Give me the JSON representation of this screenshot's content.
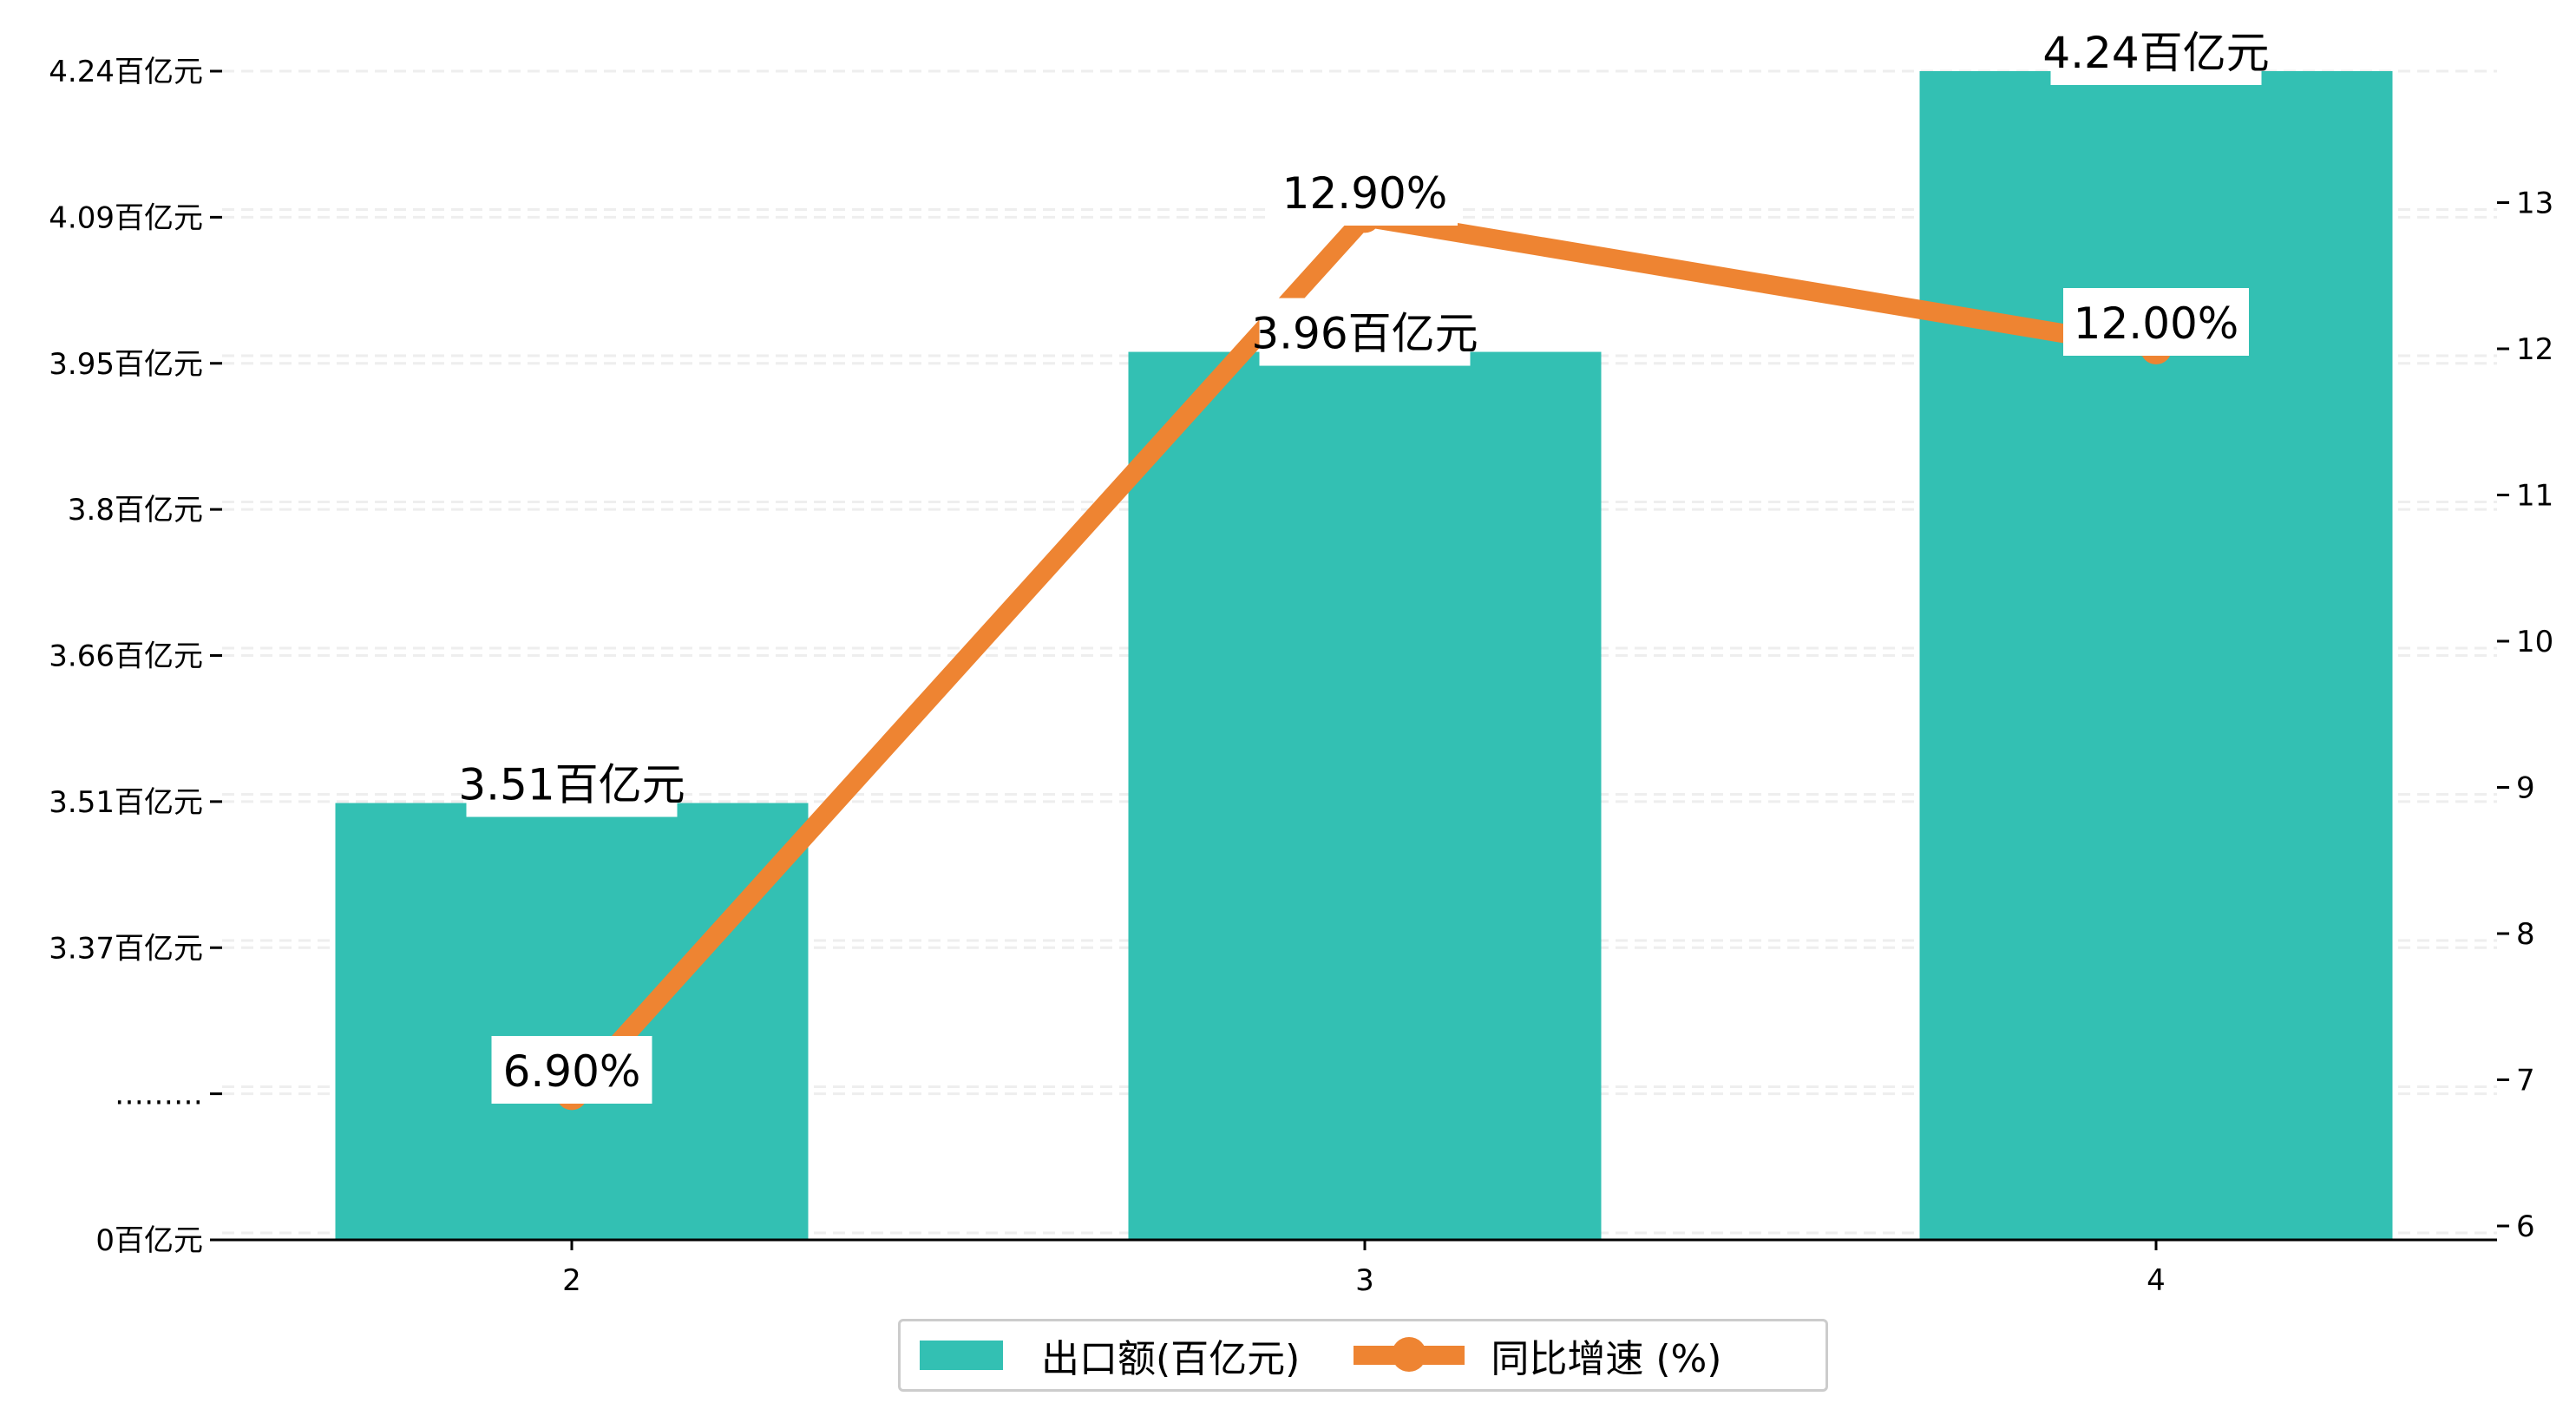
{
  "chart_data": {
    "type": "bar+line",
    "categories": [
      "2",
      "3",
      "4"
    ],
    "series": [
      {
        "name": "出口额(百亿元)",
        "type": "bar",
        "axis": "left",
        "values": [
          3.51,
          3.96,
          4.24
        ],
        "labels": [
          "3.51百亿元",
          "3.96百亿元",
          "4.24百亿元"
        ],
        "color": "#33C0B3"
      },
      {
        "name": "同比增速 (%)",
        "type": "line",
        "axis": "right",
        "values": [
          6.9,
          12.9,
          12.0
        ],
        "labels": [
          "6.90%",
          "12.90%",
          "12.00%"
        ],
        "color": "#EE8432"
      }
    ],
    "left_ticks": [
      "0百亿元",
      "………",
      "3.37百亿元",
      "3.51百亿元",
      "3.66百亿元",
      "3.8百亿元",
      "3.95百亿元",
      "4.09百亿元",
      "4.24百亿元"
    ],
    "right_ticks": [
      6,
      7,
      8,
      9,
      10,
      11,
      12,
      13
    ],
    "right_ylim": [
      6,
      13.9
    ],
    "grid": true,
    "legend_position": "bottom-center"
  }
}
